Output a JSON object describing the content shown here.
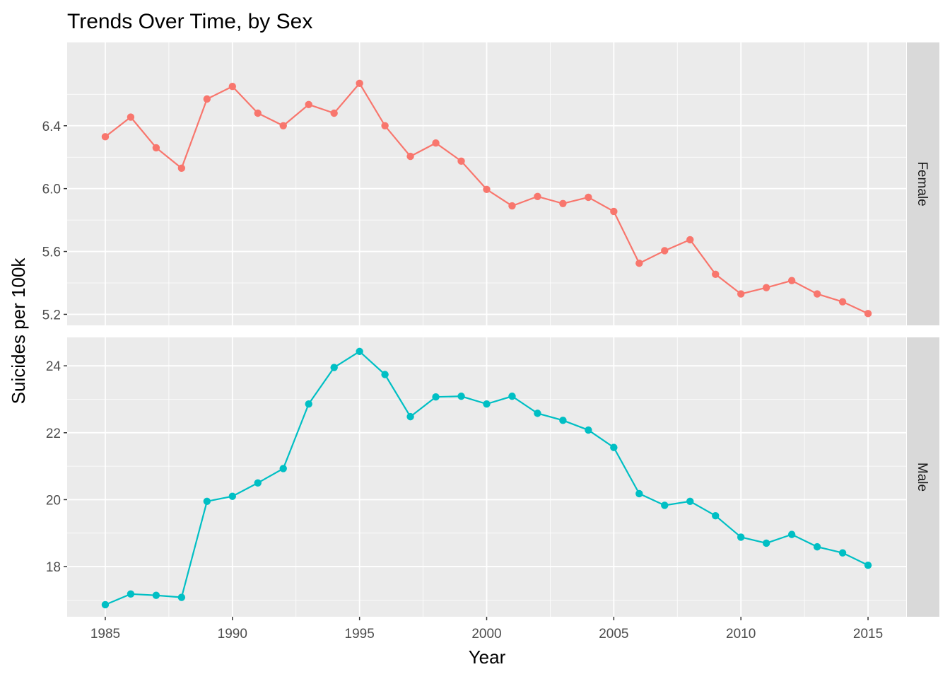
{
  "chart_data": {
    "type": "line",
    "title": "Trends Over Time, by Sex",
    "xlabel": "Year",
    "ylabel": "Suicides per 100k",
    "x_ticks": [
      1985,
      1990,
      1995,
      2000,
      2005,
      2010,
      2015
    ],
    "x_range": [
      1983.5,
      2016.5
    ],
    "grid": true,
    "legend": "none",
    "panels": [
      {
        "name": "Female",
        "color": "#F8766D",
        "ylim": [
          5.13,
          6.93
        ],
        "y_ticks": [
          5.2,
          5.6,
          6.0,
          6.4
        ],
        "x": [
          1985,
          1986,
          1987,
          1988,
          1989,
          1990,
          1991,
          1992,
          1993,
          1994,
          1995,
          1996,
          1997,
          1998,
          1999,
          2000,
          2001,
          2002,
          2003,
          2004,
          2005,
          2006,
          2007,
          2008,
          2009,
          2010,
          2011,
          2012,
          2013,
          2014,
          2015
        ],
        "values": [
          6.33,
          6.455,
          6.26,
          6.13,
          6.57,
          6.65,
          6.48,
          6.4,
          6.535,
          6.48,
          6.67,
          6.4,
          6.205,
          6.29,
          6.175,
          5.995,
          5.89,
          5.95,
          5.905,
          5.945,
          5.855,
          5.525,
          5.605,
          5.675,
          5.455,
          5.33,
          5.37,
          5.415,
          5.33,
          5.28,
          5.205
        ]
      },
      {
        "name": "Male",
        "color": "#00BFC4",
        "ylim": [
          16.5,
          24.85
        ],
        "y_ticks": [
          18,
          20,
          22,
          24
        ],
        "x": [
          1985,
          1986,
          1987,
          1988,
          1989,
          1990,
          1991,
          1992,
          1993,
          1994,
          1995,
          1996,
          1997,
          1998,
          1999,
          2000,
          2001,
          2002,
          2003,
          2004,
          2005,
          2006,
          2007,
          2008,
          2009,
          2010,
          2011,
          2012,
          2013,
          2014,
          2015
        ],
        "values": [
          16.86,
          17.18,
          17.14,
          17.08,
          19.95,
          20.1,
          20.5,
          20.93,
          22.86,
          23.95,
          24.43,
          23.74,
          22.48,
          23.07,
          23.09,
          22.86,
          23.09,
          22.58,
          22.37,
          22.08,
          21.56,
          20.18,
          19.83,
          19.95,
          19.52,
          18.88,
          18.7,
          18.96,
          18.59,
          18.41,
          18.04
        ]
      }
    ]
  }
}
